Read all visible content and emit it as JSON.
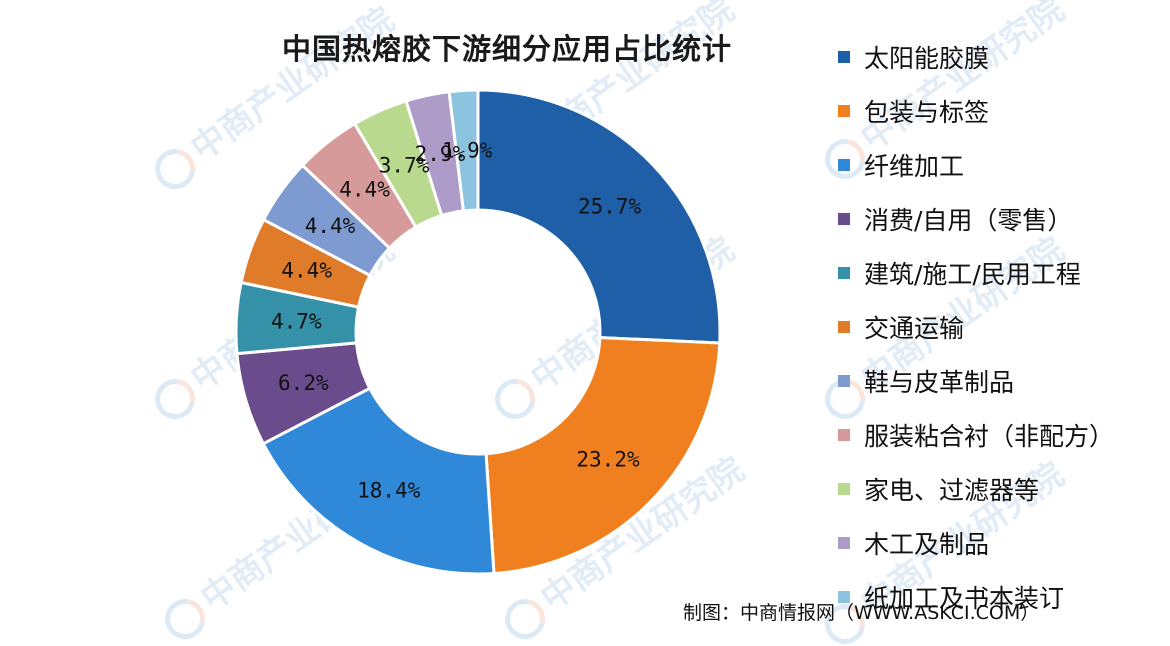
{
  "colors": {
    "series": [
      "#1f5fa8",
      "#f0801f",
      "#2f88d8",
      "#6a4c8c",
      "#3591a8",
      "#e07b2a",
      "#7d9ad1",
      "#d79a9a",
      "#b9d98f",
      "#ad9cc7",
      "#8cc3df"
    ]
  },
  "chart_data": {
    "type": "pie",
    "donut": true,
    "title": "中国热熔胶下游细分应用占比统计",
    "legend_position": "right",
    "categories": [
      "太阳能胶膜",
      "包装与标签",
      "纤维加工",
      "消费/自用（零售）",
      "建筑/施工/民用工程",
      "交通运输",
      "鞋与皮革制品",
      "服装粘合衬（非配方）",
      "家电、过滤器等",
      "木工及制品",
      "纸加工及书本装订"
    ],
    "values": [
      25.7,
      23.2,
      18.4,
      6.2,
      4.7,
      4.4,
      4.4,
      4.4,
      3.7,
      2.9,
      1.9
    ],
    "data_labels": [
      "25.7%",
      "23.2%",
      "18.4%",
      "6.2%",
      "4.7%",
      "4.4%",
      "4.4%",
      "4.4%",
      "3.7%",
      "2.9%",
      "1.9%"
    ],
    "unit": "%"
  },
  "source_text": "制图：中商情报网（WWW.ASKCI.COM）",
  "watermark": {
    "text": "中商产业研究院"
  }
}
